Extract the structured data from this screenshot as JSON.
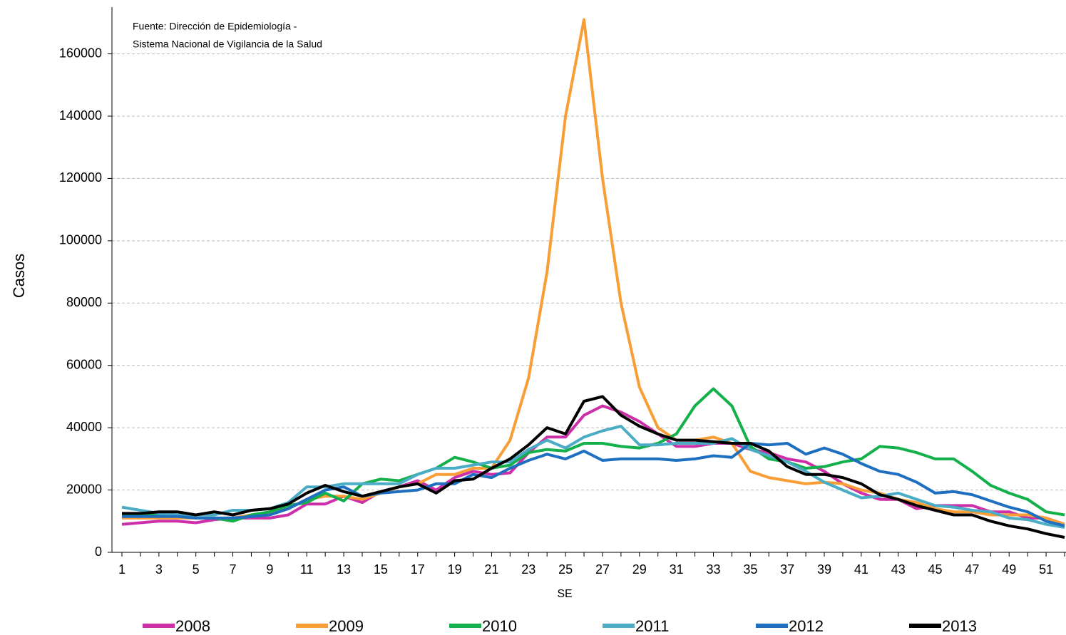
{
  "chart_data": {
    "type": "line",
    "annotation": [
      "Fuente: Dirección de Epidemiología -",
      "Sistema Nacional de Vigilancia de la Salud"
    ],
    "y_label": "Casos",
    "x_label": "SE",
    "categories": [
      "1",
      null,
      "3",
      null,
      "5",
      null,
      "7",
      null,
      "9",
      null,
      "11",
      null,
      "13",
      null,
      "15",
      null,
      "17",
      null,
      "19",
      null,
      "21",
      null,
      "23",
      null,
      "25",
      null,
      "27",
      null,
      "29",
      null,
      "31",
      null,
      "33",
      null,
      "35",
      null,
      "37",
      null,
      "39",
      null,
      "41",
      null,
      "43",
      null,
      "45",
      null,
      "47",
      null,
      "49",
      null,
      "51",
      null
    ],
    "ylim": [
      0,
      175000
    ],
    "yticks": [
      0,
      20000,
      40000,
      60000,
      80000,
      100000,
      120000,
      140000,
      160000
    ],
    "grid": true,
    "legend": "bottom",
    "series": [
      {
        "name": "2008",
        "color": "#cc2fa8",
        "values": [
          9000,
          9500,
          10000,
          10000,
          9500,
          10500,
          11000,
          11000,
          11000,
          12000,
          15500,
          15500,
          18000,
          16000,
          19500,
          21000,
          23000,
          20000,
          24000,
          26000,
          25000,
          25500,
          32000,
          37000,
          37000,
          44000,
          47000,
          45000,
          42000,
          38000,
          34000,
          34000,
          35000,
          35000,
          33000,
          32000,
          30000,
          29000,
          26000,
          22000,
          19000,
          17000,
          17000,
          14000,
          15000,
          15000,
          15000,
          13000,
          13000,
          11000,
          11000,
          9000
        ]
      },
      {
        "name": "2009",
        "color": "#f99d35",
        "values": [
          11000,
          11000,
          11000,
          11000,
          11000,
          11000,
          11000,
          12000,
          12500,
          14000,
          17000,
          18000,
          18000,
          17000,
          19000,
          21000,
          22000,
          25000,
          25000,
          27000,
          27000,
          36000,
          56000,
          90000,
          140000,
          171000,
          120000,
          80000,
          53000,
          40000,
          36000,
          36000,
          37000,
          35000,
          26000,
          24000,
          23000,
          22000,
          22500,
          22000,
          20000,
          19000,
          17000,
          16000,
          14000,
          13000,
          13000,
          12000,
          12000,
          12000,
          11000,
          9000
        ]
      },
      {
        "name": "2010",
        "color": "#13b04b",
        "values": [
          12000,
          12000,
          12000,
          12000,
          11000,
          11000,
          10000,
          12000,
          13000,
          15000,
          16000,
          19000,
          16500,
          22000,
          23500,
          23000,
          25000,
          27000,
          30500,
          29000,
          27000,
          28000,
          32000,
          33000,
          32500,
          35000,
          35000,
          34000,
          33500,
          35000,
          38000,
          47000,
          52500,
          47000,
          34000,
          30000,
          29000,
          27000,
          27500,
          29000,
          30000,
          34000,
          33500,
          32000,
          30000,
          30000,
          26000,
          21500,
          19000,
          17000,
          13000,
          12000
        ]
      },
      {
        "name": "2011",
        "color": "#4bacc6",
        "values": [
          14500,
          13500,
          12500,
          12000,
          12000,
          12000,
          13500,
          13500,
          14000,
          16000,
          21000,
          21000,
          22000,
          22000,
          22000,
          22000,
          25000,
          27000,
          27000,
          28000,
          29000,
          29000,
          33000,
          36000,
          33500,
          37000,
          39000,
          40500,
          34500,
          34500,
          35000,
          35000,
          35000,
          36500,
          33000,
          31000,
          29000,
          26000,
          22500,
          20000,
          17500,
          18000,
          19000,
          17000,
          15000,
          14500,
          13500,
          13000,
          11000,
          10500,
          9000,
          8000
        ]
      },
      {
        "name": "2012",
        "color": "#1f6fc0",
        "values": [
          11500,
          11500,
          11500,
          11500,
          11000,
          11000,
          11000,
          11500,
          12000,
          14000,
          17000,
          20000,
          21000,
          18000,
          19000,
          19500,
          20000,
          22000,
          22000,
          25000,
          24000,
          27000,
          29500,
          31500,
          30000,
          32500,
          29500,
          30000,
          30000,
          30000,
          29500,
          30000,
          31000,
          30500,
          35000,
          34500,
          35000,
          31500,
          33500,
          31500,
          28500,
          26000,
          25000,
          22500,
          19000,
          19500,
          18500,
          16500,
          14500,
          13000,
          10000,
          8500
        ]
      },
      {
        "name": "2013",
        "color": "#000000",
        "values": [
          12500,
          12500,
          13000,
          13000,
          12000,
          13000,
          12000,
          13500,
          14000,
          15500,
          19000,
          21500,
          19500,
          18000,
          19500,
          21000,
          22000,
          19000,
          23000,
          23500,
          27000,
          30000,
          34500,
          40000,
          38000,
          48500,
          50000,
          44000,
          40500,
          38000,
          36000,
          36000,
          35500,
          35000,
          35000,
          32500,
          27500,
          25000,
          25000,
          24000,
          22000,
          18500,
          17000,
          15000,
          13500,
          12000,
          12000,
          10000,
          8500,
          7500,
          6000,
          4800
        ]
      }
    ]
  }
}
